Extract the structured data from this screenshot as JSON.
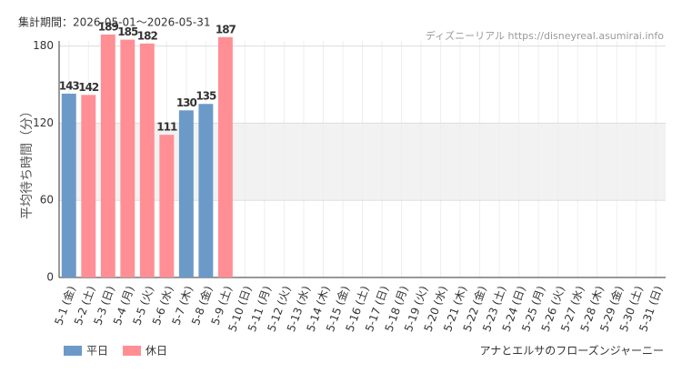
{
  "chart_data": {
    "type": "bar",
    "header": "集計期間：2026-05-01～2026-05-31",
    "source": "ディズニーリアル https://disneyreal.asumirai.info",
    "y_label": "平均待ち時間（分）",
    "footer": "アナとエルサのフローズンジャーニー",
    "categories": [
      "5-1 (金)",
      "5-2 (土)",
      "5-3 (日)",
      "5-4 (月)",
      "5-5 (火)",
      "5-6 (水)",
      "5-7 (木)",
      "5-8 (金)",
      "5-9 (土)",
      "5-10 (日)",
      "5-11 (月)",
      "5-12 (火)",
      "5-13 (水)",
      "5-14 (木)",
      "5-15 (金)",
      "5-16 (土)",
      "5-17 (日)",
      "5-18 (月)",
      "5-19 (火)",
      "5-20 (水)",
      "5-21 (木)",
      "5-22 (金)",
      "5-23 (土)",
      "5-24 (日)",
      "5-25 (月)",
      "5-26 (火)",
      "5-27 (水)",
      "5-28 (木)",
      "5-29 (金)",
      "5-30 (土)",
      "5-31 (日)"
    ],
    "category_colors": [
      "#333",
      "#f07070",
      "#f07070",
      "#f07070",
      "#f07070",
      "#f07070",
      "#333",
      "#333",
      "#f07070",
      "#f07070",
      "#333",
      "#333",
      "#333",
      "#333",
      "#333",
      "#f07070",
      "#f07070",
      "#333",
      "#333",
      "#333",
      "#333",
      "#333",
      "#f07070",
      "#f07070",
      "#333",
      "#333",
      "#333",
      "#333",
      "#333",
      "#f07070",
      "#f07070"
    ],
    "series": [
      {
        "name": "平日",
        "color": "#6b9ac8",
        "values": [
          143,
          null,
          null,
          null,
          null,
          null,
          130,
          135,
          null,
          null,
          null,
          null,
          null,
          null,
          null,
          null,
          null,
          null,
          null,
          null,
          null,
          null,
          null,
          null,
          null,
          null,
          null,
          null,
          null,
          null,
          null
        ]
      },
      {
        "name": "休日",
        "color": "#ff8f95",
        "values": [
          null,
          142,
          189,
          185,
          182,
          111,
          null,
          null,
          187,
          null,
          null,
          null,
          null,
          null,
          null,
          null,
          null,
          null,
          null,
          null,
          null,
          null,
          null,
          null,
          null,
          null,
          null,
          null,
          null,
          null,
          null
        ]
      }
    ],
    "ylim": [
      0,
      184
    ],
    "yticks": [
      0,
      60,
      120,
      180
    ],
    "shaded_band": [
      60,
      120
    ],
    "grid": true
  }
}
